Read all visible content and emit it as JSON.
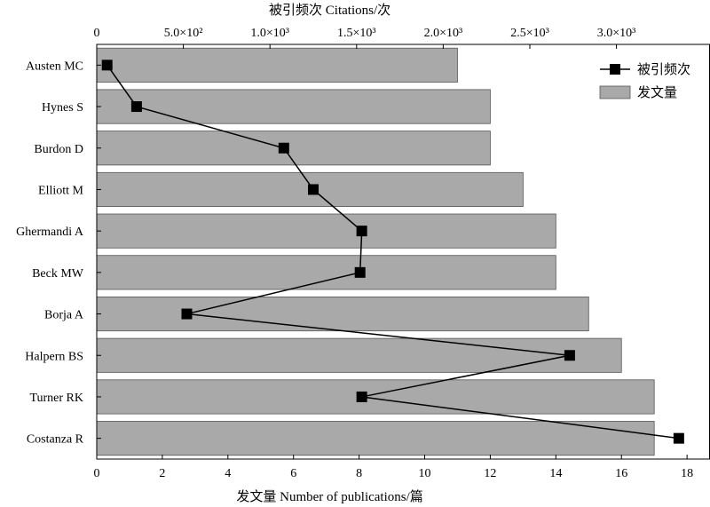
{
  "chart_data": {
    "type": "bar",
    "orientation": "horizontal",
    "categories": [
      "Austen MC",
      "Hynes S",
      "Burdon D",
      "Elliott M",
      "Ghermandi A",
      "Beck MW",
      "Borja A",
      "Halpern BS",
      "Turner RK",
      "Costanza R"
    ],
    "series": [
      {
        "name": "发文量",
        "type": "bar",
        "axis": "bottom",
        "values": [
          11,
          12,
          12,
          13,
          14,
          14,
          15,
          16,
          17,
          17
        ],
        "color": "#a9a9a9"
      },
      {
        "name": "被引频次",
        "type": "line",
        "axis": "top",
        "values": [
          60,
          230,
          1080,
          1250,
          1530,
          1520,
          520,
          2730,
          1530,
          3360
        ],
        "color": "#000000"
      }
    ],
    "bottom_axis": {
      "title": "发文量 Number of publications/篇",
      "range": [
        0,
        18.7
      ],
      "ticks": [
        0,
        2,
        4,
        6,
        8,
        10,
        12,
        14,
        16,
        18
      ],
      "tick_labels": [
        "0",
        "2",
        "4",
        "6",
        "8",
        "10",
        "12",
        "14",
        "16",
        "18"
      ]
    },
    "top_axis": {
      "title": "被引频次 Citations/次",
      "range": [
        0,
        3540
      ],
      "ticks": [
        0,
        500,
        1000,
        1500,
        2000,
        2500,
        3000
      ],
      "tick_labels": [
        "0",
        "5.0×10²",
        "1.0×10³",
        "1.5×10³",
        "2.0×10³",
        "2.5×10³",
        "3.0×10³"
      ]
    },
    "legend": {
      "position": "top-right",
      "items": [
        {
          "label": "被引频次",
          "kind": "line-marker"
        },
        {
          "label": "发文量",
          "kind": "bar"
        }
      ]
    },
    "grid": false
  }
}
